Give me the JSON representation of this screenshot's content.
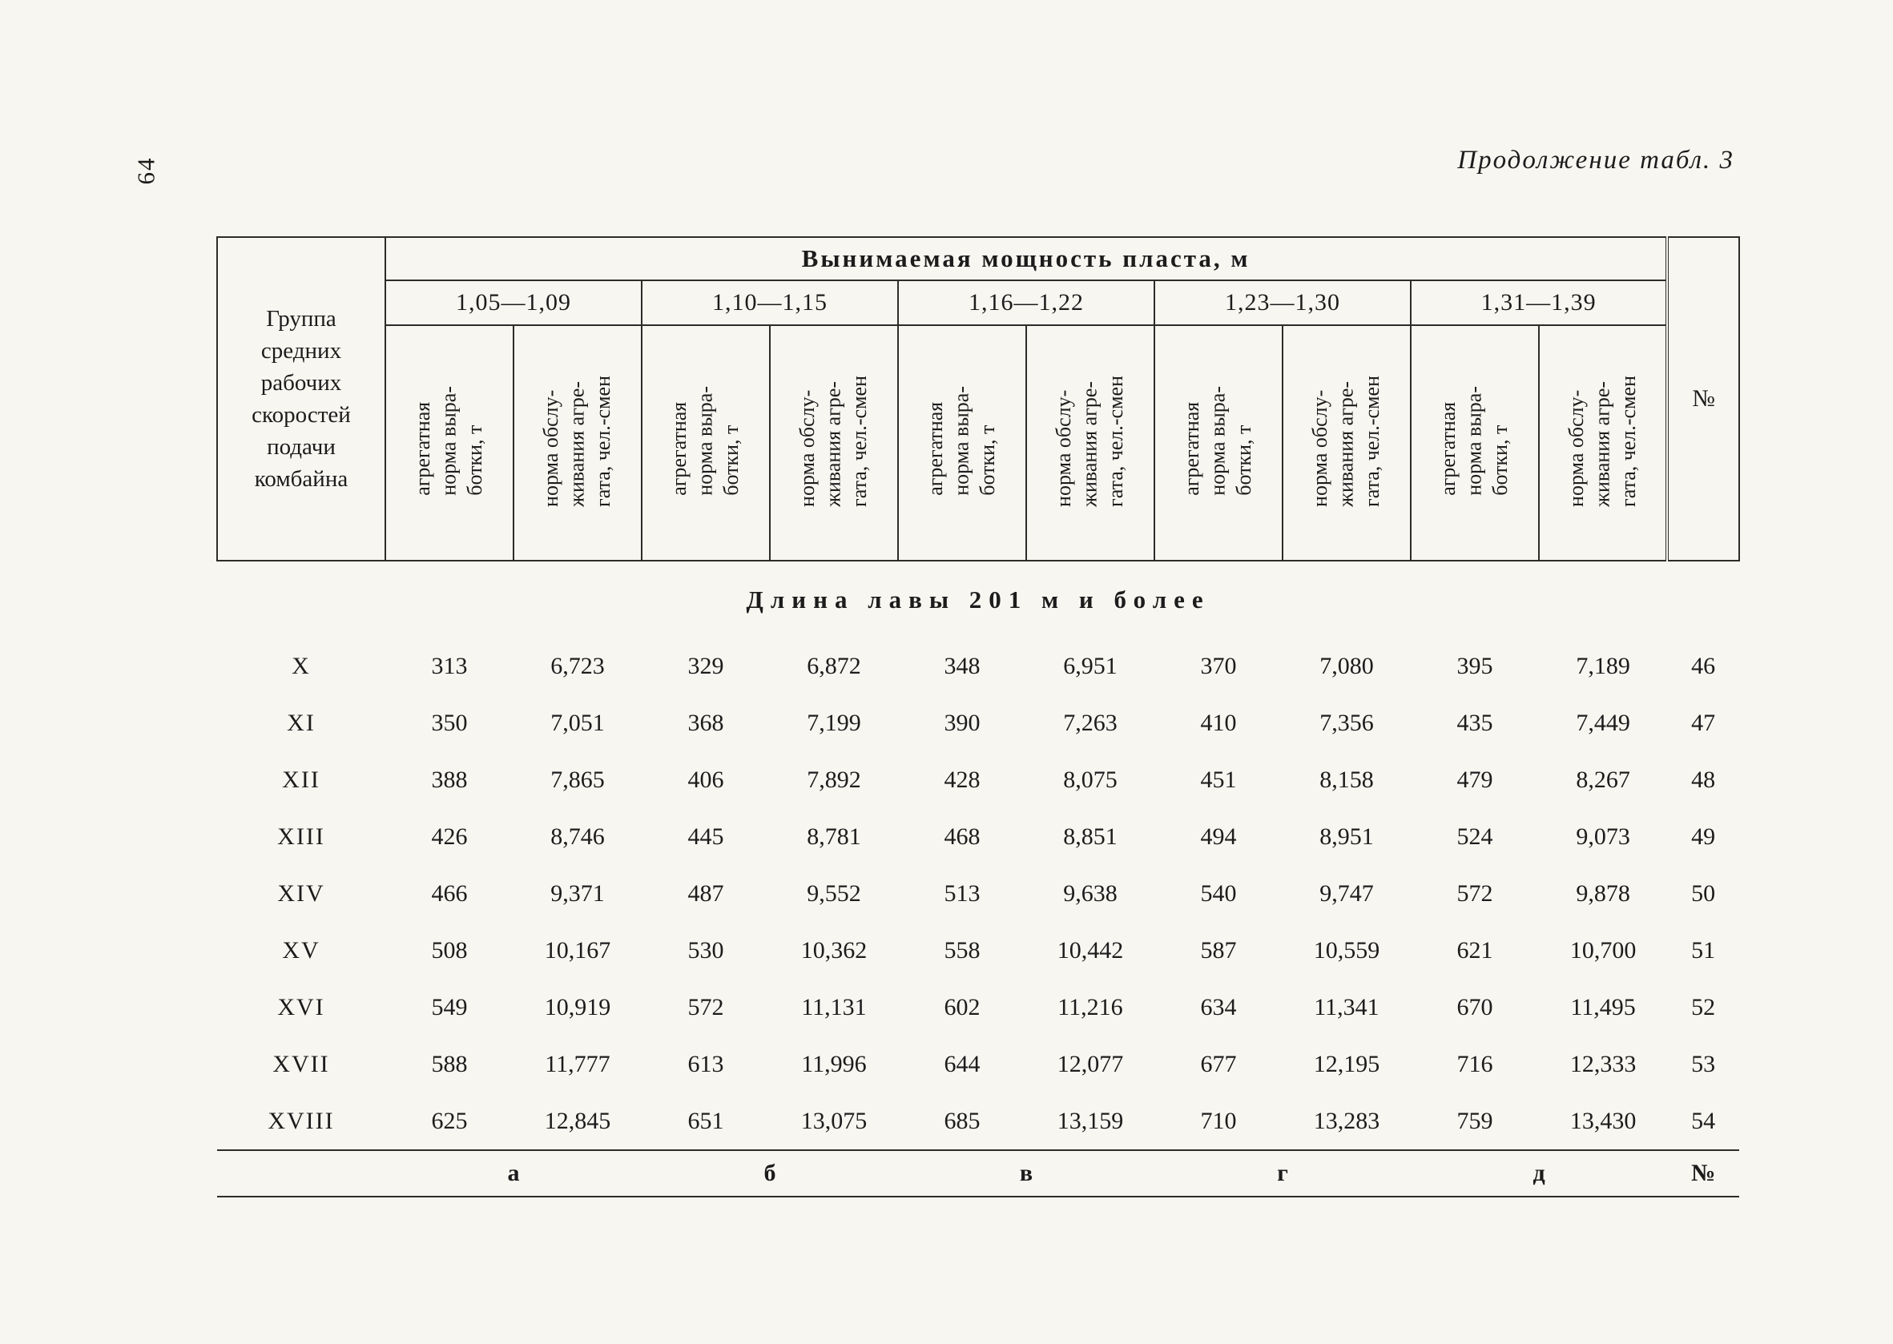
{
  "page": {
    "page_number": "64",
    "continuation": "Продолжение табл. 3"
  },
  "colors": {
    "paper": "#f8f6f1",
    "ink": "#1c1c1c"
  },
  "table": {
    "corner_header": "Группа\nсредних\nрабочих\nскоростей\nподачи\nкомбайна",
    "span_header": "Вынимаемая мощность пласта, м",
    "number_header": "№",
    "groups": [
      {
        "range": "1,05—1,09"
      },
      {
        "range": "1,10—1,15"
      },
      {
        "range": "1,16—1,22"
      },
      {
        "range": "1,23—1,30"
      },
      {
        "range": "1,31—1,39"
      }
    ],
    "sub_headers": [
      "агрегатная\nнорма выра-\nботки, т",
      "норма обслу-\nживания агре-\nгата, чел.-смен"
    ],
    "section_title": "Длина лавы 201 м и более",
    "rows": [
      {
        "group": "X",
        "values": [
          "313",
          "6,723",
          "329",
          "6,872",
          "348",
          "6,951",
          "370",
          "7,080",
          "395",
          "7,189"
        ],
        "num": "46"
      },
      {
        "group": "XI",
        "values": [
          "350",
          "7,051",
          "368",
          "7,199",
          "390",
          "7,263",
          "410",
          "7,356",
          "435",
          "7,449"
        ],
        "num": "47"
      },
      {
        "group": "XII",
        "values": [
          "388",
          "7,865",
          "406",
          "7,892",
          "428",
          "8,075",
          "451",
          "8,158",
          "479",
          "8,267"
        ],
        "num": "48"
      },
      {
        "group": "XIII",
        "values": [
          "426",
          "8,746",
          "445",
          "8,781",
          "468",
          "8,851",
          "494",
          "8,951",
          "524",
          "9,073"
        ],
        "num": "49"
      },
      {
        "group": "XIV",
        "values": [
          "466",
          "9,371",
          "487",
          "9,552",
          "513",
          "9,638",
          "540",
          "9,747",
          "572",
          "9,878"
        ],
        "num": "50"
      },
      {
        "group": "XV",
        "values": [
          "508",
          "10,167",
          "530",
          "10,362",
          "558",
          "10,442",
          "587",
          "10,559",
          "621",
          "10,700"
        ],
        "num": "51"
      },
      {
        "group": "XVI",
        "values": [
          "549",
          "10,919",
          "572",
          "11,131",
          "602",
          "11,216",
          "634",
          "11,341",
          "670",
          "11,495"
        ],
        "num": "52"
      },
      {
        "group": "XVII",
        "values": [
          "588",
          "11,777",
          "613",
          "11,996",
          "644",
          "12,077",
          "677",
          "12,195",
          "716",
          "12,333"
        ],
        "num": "53"
      },
      {
        "group": "XVIII",
        "values": [
          "625",
          "12,845",
          "651",
          "13,075",
          "685",
          "13,159",
          "710",
          "13,283",
          "759",
          "13,430"
        ],
        "num": "54"
      }
    ],
    "footer": [
      "а",
      "б",
      "в",
      "г",
      "д",
      "№"
    ]
  }
}
